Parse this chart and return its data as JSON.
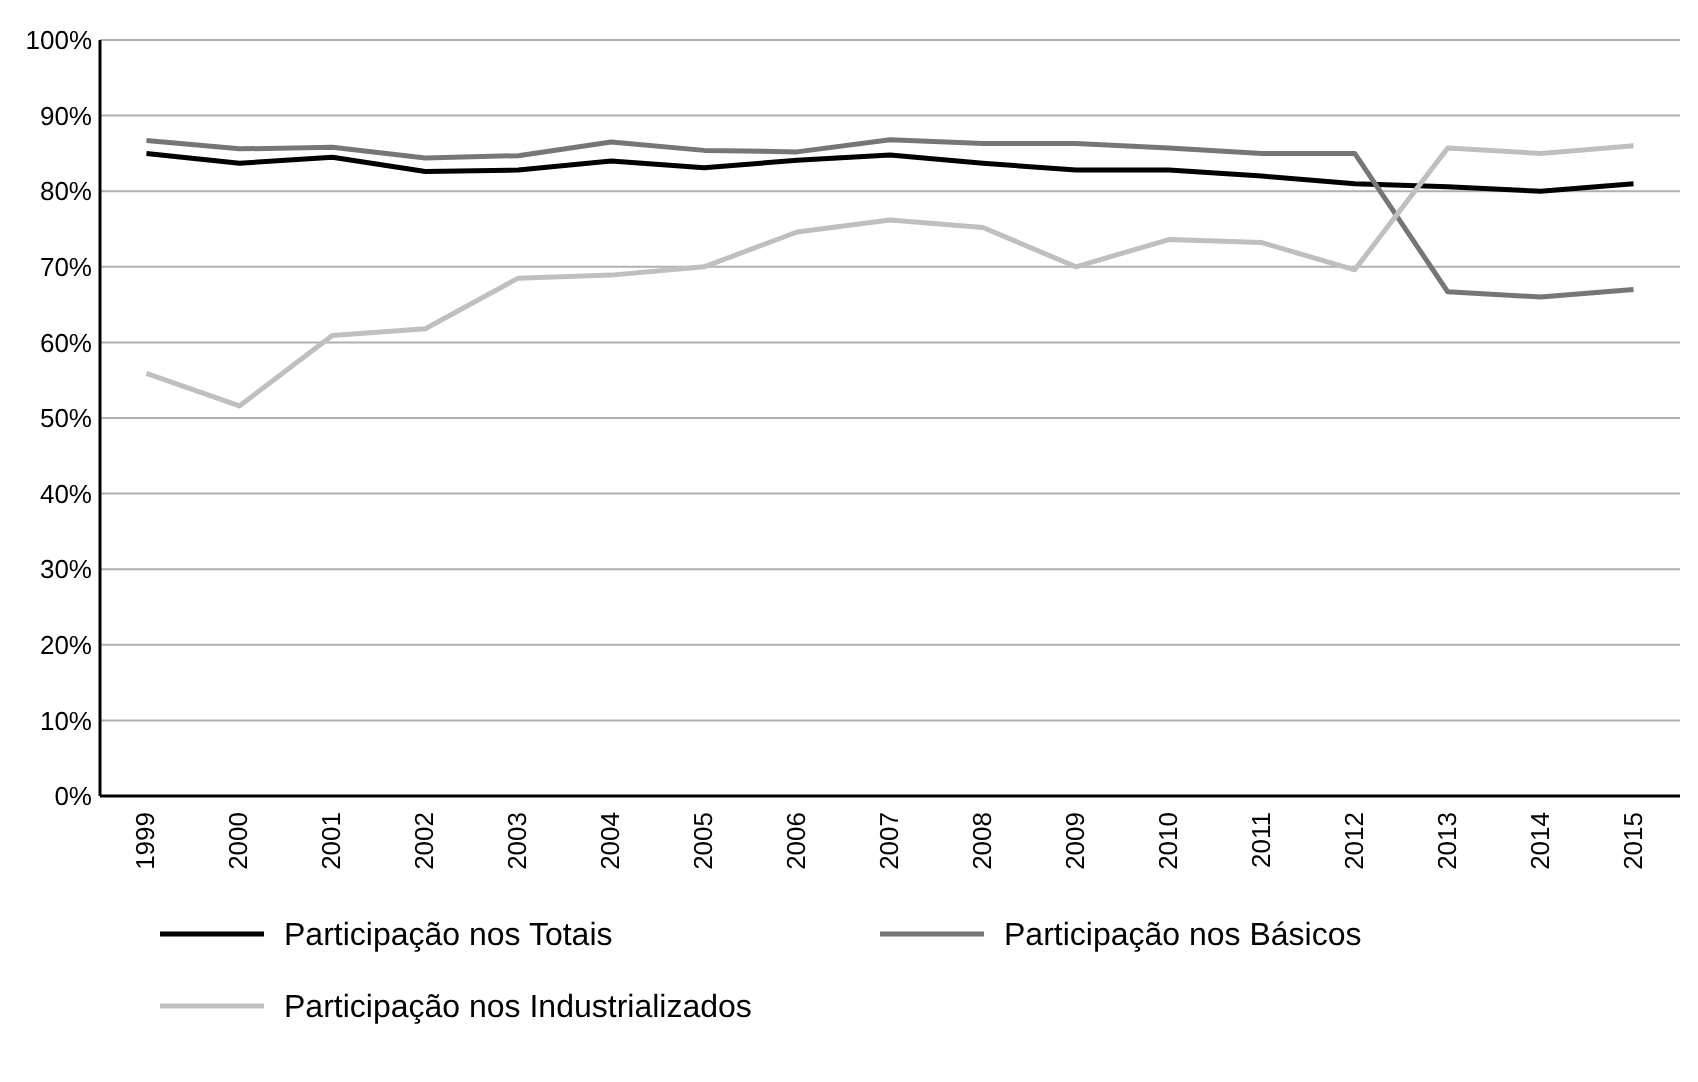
{
  "chart_data": {
    "type": "line",
    "categories": [
      "1999",
      "2000",
      "2001",
      "2002",
      "2003",
      "2004",
      "2005",
      "2006",
      "2007",
      "2008",
      "2009",
      "2010",
      "2011",
      "2012",
      "2013",
      "2014",
      "2015"
    ],
    "series": [
      {
        "name": "Participação nos Totais",
        "color": "#000000",
        "values": [
          85.0,
          83.7,
          84.5,
          82.6,
          82.8,
          84.0,
          83.1,
          84.1,
          84.8,
          83.7,
          82.8,
          82.8,
          82.0,
          81.0,
          80.6,
          80.0,
          81.0
        ]
      },
      {
        "name": "Participação nos Básicos",
        "color": "#767676",
        "values": [
          86.7,
          85.6,
          85.8,
          84.4,
          84.7,
          86.5,
          85.4,
          85.2,
          86.8,
          86.3,
          86.3,
          85.7,
          85.0,
          85.0,
          66.7,
          66.0,
          67.0
        ]
      },
      {
        "name": "Participação nos Industrializados",
        "color": "#bfbfbf",
        "values": [
          55.9,
          51.6,
          60.9,
          61.8,
          68.5,
          68.9,
          70.0,
          74.6,
          76.2,
          75.2,
          70.0,
          73.6,
          73.2,
          69.6,
          85.7,
          85.0,
          86.0
        ]
      }
    ],
    "ylim": [
      0,
      100
    ],
    "yticks": [
      {
        "value": 0,
        "label": "0%"
      },
      {
        "value": 10,
        "label": "10%"
      },
      {
        "value": 20,
        "label": "20%"
      },
      {
        "value": 30,
        "label": "30%"
      },
      {
        "value": 40,
        "label": "40%"
      },
      {
        "value": 50,
        "label": "50%"
      },
      {
        "value": 60,
        "label": "60%"
      },
      {
        "value": 70,
        "label": "70%"
      },
      {
        "value": 80,
        "label": "80%"
      },
      {
        "value": 90,
        "label": "90%"
      },
      {
        "value": 100,
        "label": "100%"
      }
    ],
    "grid": "y",
    "legend": "bottom",
    "line_style": "solid"
  }
}
